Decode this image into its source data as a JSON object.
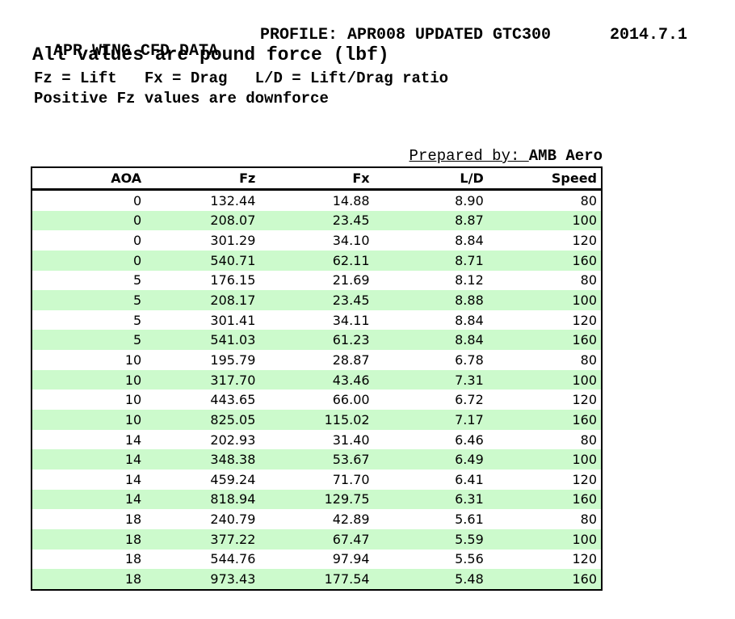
{
  "header": {
    "title": "APR WING CFD DATA",
    "profile": "PROFILE: APR008 UPDATED GTC300",
    "date": "2014.7.1",
    "subtitle": "All values are pound force (lbf)",
    "legend": "Fz = Lift   Fx = Drag   L/D = Lift/Drag ratio",
    "note": "Positive Fz values are downforce",
    "prepared_by_label": "Prepared by: ",
    "prepared_by_value": "AMB Aero"
  },
  "table": {
    "columns": [
      "AOA",
      "Fz",
      "Fx",
      "L/D",
      "Speed"
    ],
    "rows": [
      [
        "0",
        "132.44",
        "14.88",
        "8.90",
        "80"
      ],
      [
        "0",
        "208.07",
        "23.45",
        "8.87",
        "100"
      ],
      [
        "0",
        "301.29",
        "34.10",
        "8.84",
        "120"
      ],
      [
        "0",
        "540.71",
        "62.11",
        "8.71",
        "160"
      ],
      [
        "5",
        "176.15",
        "21.69",
        "8.12",
        "80"
      ],
      [
        "5",
        "208.17",
        "23.45",
        "8.88",
        "100"
      ],
      [
        "5",
        "301.41",
        "34.11",
        "8.84",
        "120"
      ],
      [
        "5",
        "541.03",
        "61.23",
        "8.84",
        "160"
      ],
      [
        "10",
        "195.79",
        "28.87",
        "6.78",
        "80"
      ],
      [
        "10",
        "317.70",
        "43.46",
        "7.31",
        "100"
      ],
      [
        "10",
        "443.65",
        "66.00",
        "6.72",
        "120"
      ],
      [
        "10",
        "825.05",
        "115.02",
        "7.17",
        "160"
      ],
      [
        "14",
        "202.93",
        "31.40",
        "6.46",
        "80"
      ],
      [
        "14",
        "348.38",
        "53.67",
        "6.49",
        "100"
      ],
      [
        "14",
        "459.24",
        "71.70",
        "6.41",
        "120"
      ],
      [
        "14",
        "818.94",
        "129.75",
        "6.31",
        "160"
      ],
      [
        "18",
        "240.79",
        "42.89",
        "5.61",
        "80"
      ],
      [
        "18",
        "377.22",
        "67.47",
        "5.59",
        "100"
      ],
      [
        "18",
        "544.76",
        "97.94",
        "5.56",
        "120"
      ],
      [
        "18",
        "973.43",
        "177.54",
        "5.48",
        "160"
      ]
    ]
  },
  "colors": {
    "row_band_green": "#ccfacc",
    "border": "#000000",
    "text": "#000000",
    "background": "#ffffff"
  }
}
